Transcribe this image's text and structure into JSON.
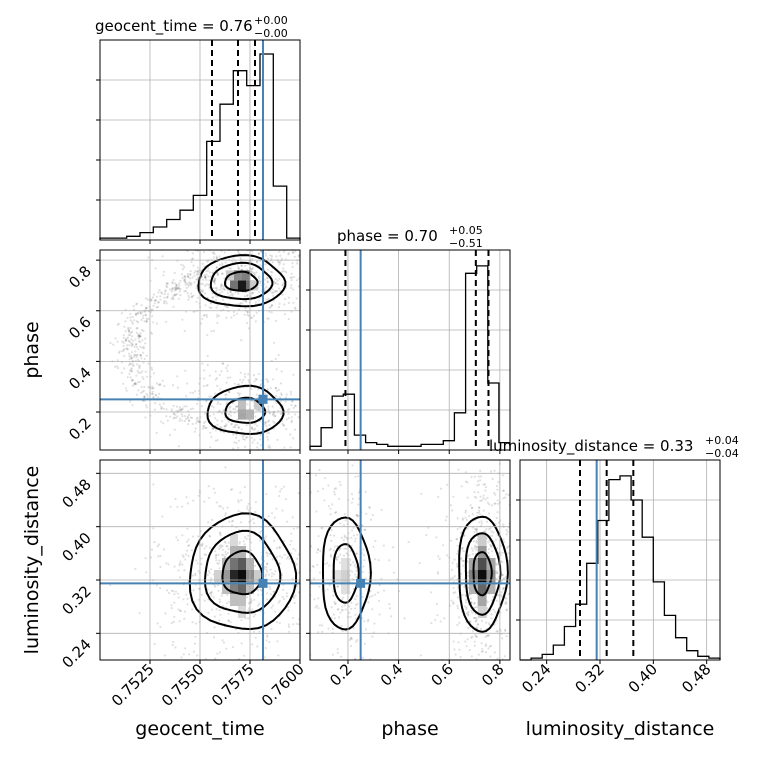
{
  "chart_data": {
    "type": "corner",
    "params": [
      "geocent_time",
      "phase",
      "luminosity_distance"
    ],
    "truth_color": "#4682b4",
    "truths": {
      "geocent_time": 0.75815,
      "phase": 0.25,
      "luminosity_distance": 0.315
    },
    "diag": [
      {
        "param": "geocent_time",
        "title": {
          "main": "geocent_time = 0.76",
          "sup": "+0.00",
          "sub": "−0.00"
        },
        "range": [
          0.75,
          0.76
        ],
        "quantiles": [
          0.7556,
          0.7569,
          0.75775
        ],
        "hist_max": 1.0,
        "hist": [
          0.01,
          0.01,
          0.02,
          0.04,
          0.07,
          0.11,
          0.16,
          0.24,
          0.53,
          0.73,
          0.91,
          0.83,
          1.0,
          0.29,
          0.01
        ]
      },
      {
        "param": "phase",
        "title": {
          "main": "phase = 0.70",
          "sup": "+0.05",
          "sub": "−0.51"
        },
        "range": [
          0.05,
          0.84
        ],
        "quantiles": [
          0.19,
          0.705,
          0.755
        ],
        "hist_max": 1.0,
        "hist": [
          0.02,
          0.12,
          0.29,
          0.3,
          0.08,
          0.04,
          0.03,
          0.02,
          0.02,
          0.02,
          0.03,
          0.03,
          0.05,
          0.2,
          0.95,
          0.99,
          0.36,
          0.04
        ]
      },
      {
        "param": "luminosity_distance",
        "title": {
          "main": "luminosity_distance = 0.33",
          "sup": "+0.04",
          "sub": "−0.04"
        },
        "range": [
          0.2,
          0.5
        ],
        "quantiles": [
          0.29,
          0.33,
          0.37
        ],
        "hist_max": 1.0,
        "hist": [
          0.0,
          0.01,
          0.03,
          0.08,
          0.18,
          0.3,
          0.52,
          0.75,
          0.97,
          0.99,
          0.86,
          0.66,
          0.42,
          0.24,
          0.12,
          0.05,
          0.02,
          0.01
        ]
      }
    ],
    "ticks": {
      "geocent_time": [
        0.7525,
        0.755,
        0.7575,
        0.76
      ],
      "phase_x": [
        0.2,
        0.4,
        0.6,
        0.8
      ],
      "phase_y": [
        0.2,
        0.4,
        0.6,
        0.8
      ],
      "luminosity_distance": [
        0.24,
        0.32,
        0.4,
        0.48
      ]
    },
    "tick_labels": {
      "geocent_time": [
        "0.7525",
        "0.7550",
        "0.7575",
        "0.7600"
      ],
      "phase_x": [
        "0.2",
        "0.4",
        "0.6",
        "0.8"
      ],
      "phase_y": [
        "0.2",
        "0.4",
        "0.6",
        "0.8"
      ],
      "luminosity_distance": [
        "0.24",
        "0.32",
        "0.40",
        "0.48"
      ]
    },
    "axis_labels": {
      "x": [
        "geocent_time",
        "phase",
        "luminosity_distance"
      ],
      "y": [
        "phase",
        "luminosity_distance"
      ]
    },
    "grid": true,
    "blobs": [
      {
        "panel": "phase-vs-geocent_time",
        "cx": 0.75705,
        "cy": 0.715,
        "sx": 0.0009,
        "sy": 0.042,
        "w": 1.0
      },
      {
        "panel": "phase-vs-geocent_time",
        "cx": 0.75725,
        "cy": 0.205,
        "sx": 0.0009,
        "sy": 0.045,
        "w": 0.65
      },
      {
        "panel": "ld-vs-geocent_time",
        "cx": 0.7571,
        "cy": 0.33,
        "sx": 0.0011,
        "sy": 0.036,
        "w": 1.0
      },
      {
        "panel": "ld-vs-phase",
        "cx": 0.19,
        "cy": 0.33,
        "sx": 0.045,
        "sy": 0.04,
        "w": 0.55
      },
      {
        "panel": "ld-vs-phase",
        "cx": 0.73,
        "cy": 0.33,
        "sx": 0.04,
        "sy": 0.036,
        "w": 1.0
      }
    ]
  }
}
